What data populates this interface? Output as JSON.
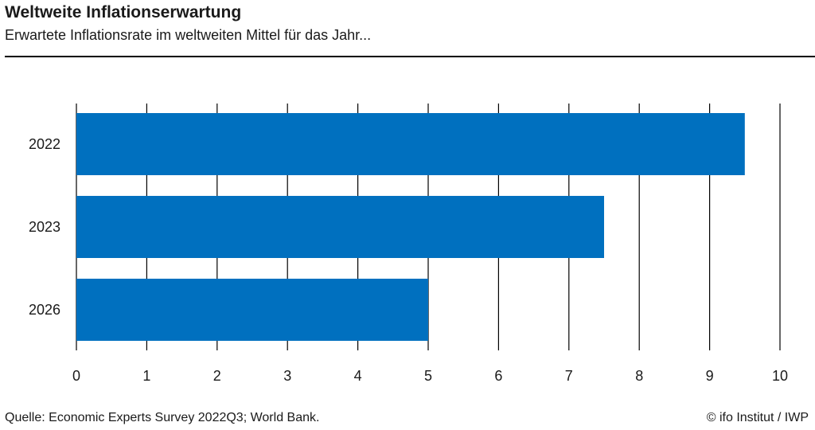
{
  "header": {
    "title": "Weltweite Inflationserwartung",
    "subtitle": "Erwartete Inflationsrate im weltweiten Mittel für das Jahr..."
  },
  "footer": {
    "source": "Quelle: Economic Experts Survey 2022Q3; World Bank.",
    "copyright": "© ifo Institut / IWP"
  },
  "colors": {
    "bar": "#0070bf",
    "grid": "#000000"
  },
  "chart_data": {
    "type": "bar",
    "orientation": "horizontal",
    "categories": [
      "2022",
      "2023",
      "2026"
    ],
    "values": [
      9.5,
      7.5,
      5
    ],
    "title": "Weltweite Inflationserwartung",
    "subtitle": "Erwartete Inflationsrate im weltweiten Mittel für das Jahr...",
    "xlabel": "",
    "ylabel": "",
    "xlim": [
      0,
      10
    ],
    "xticks": [
      "0",
      "1",
      "2",
      "3",
      "4",
      "5",
      "6",
      "7",
      "8",
      "9",
      "10"
    ],
    "grid": "vertical",
    "legend": "none"
  }
}
